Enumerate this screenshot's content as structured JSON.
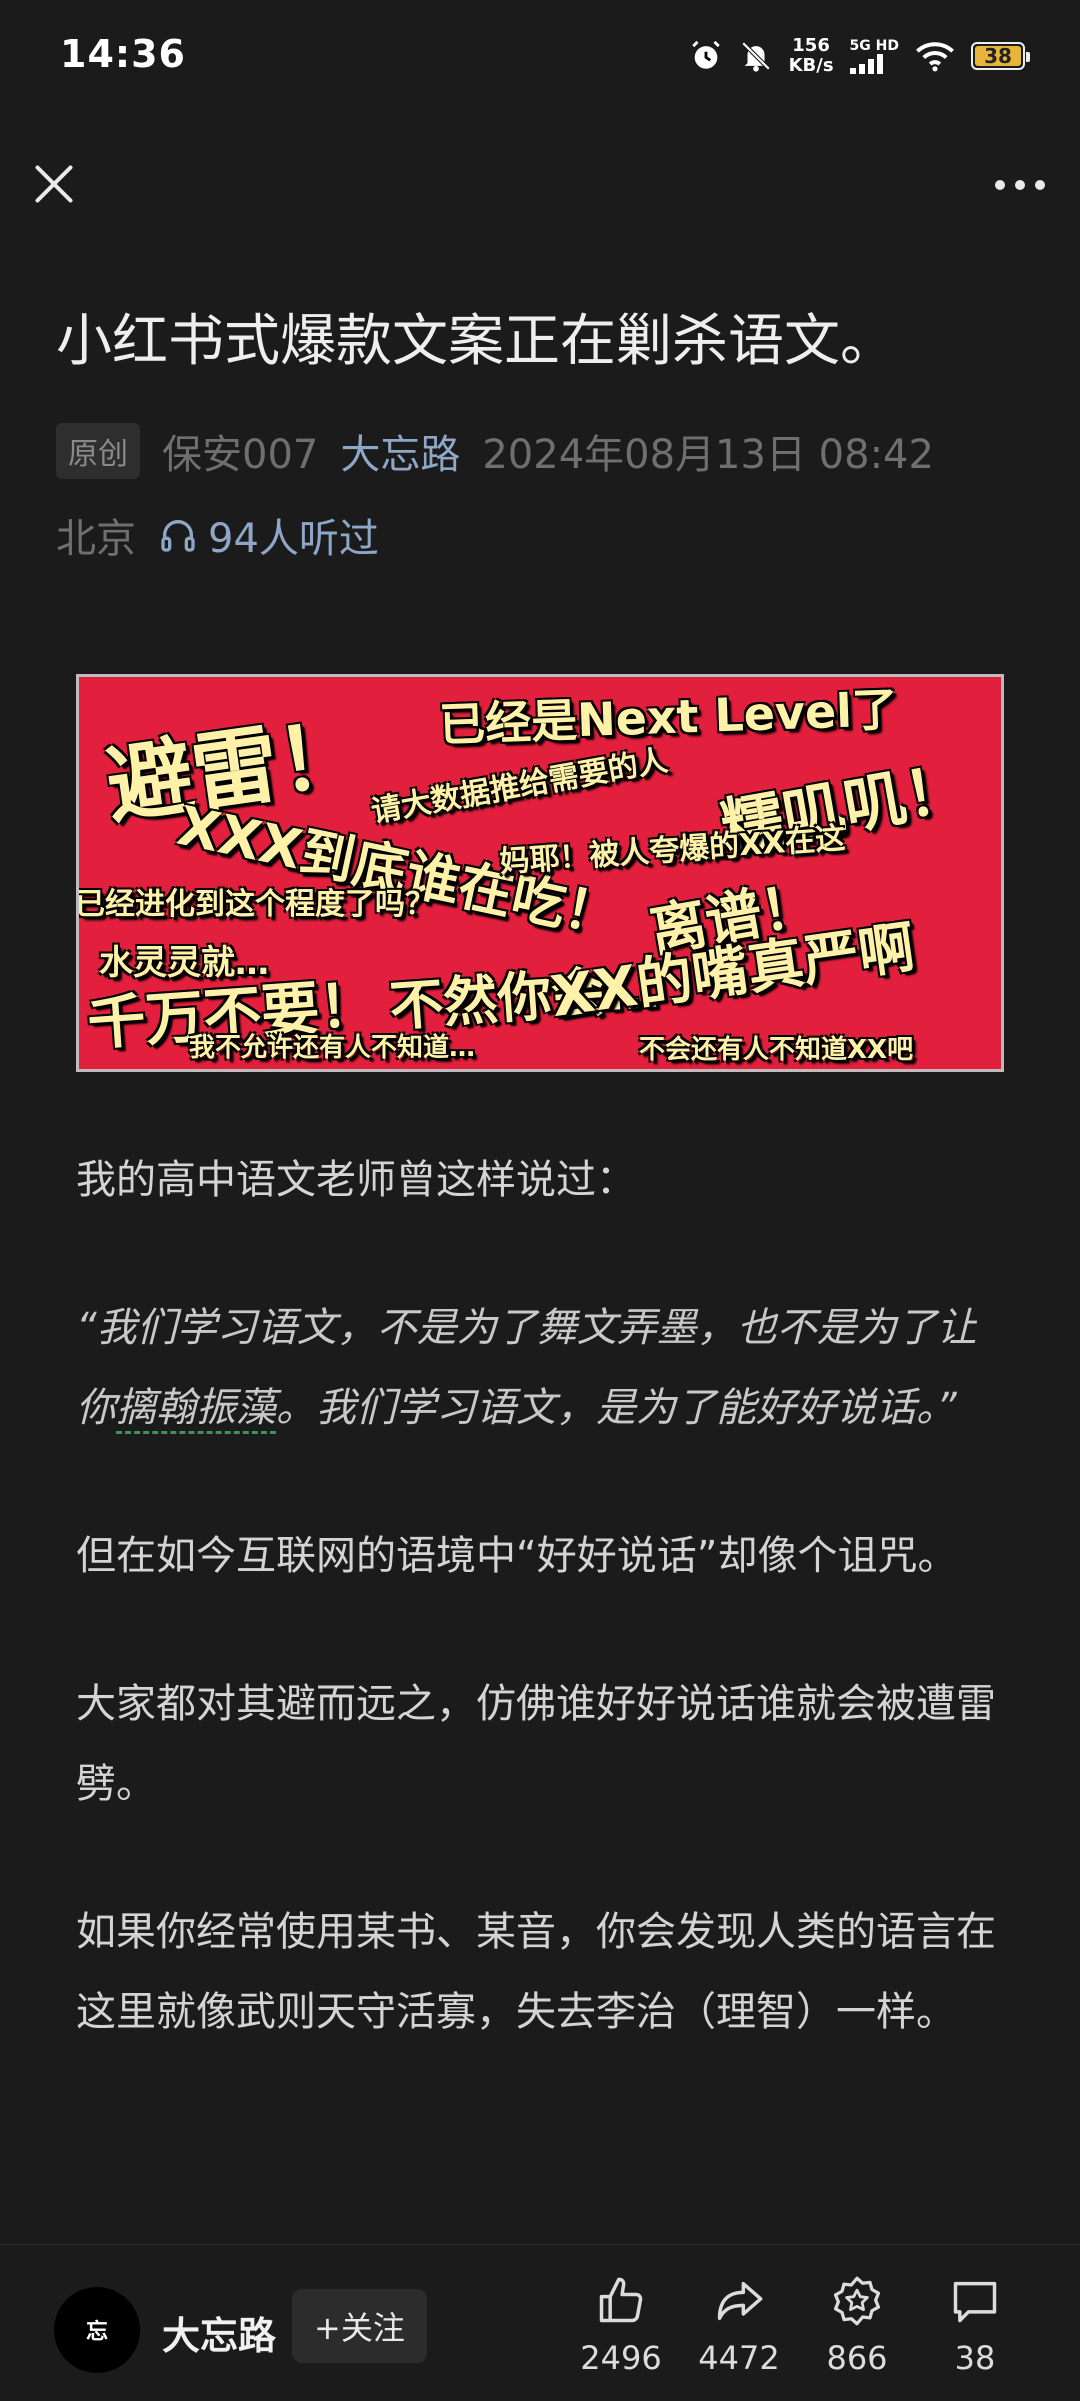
{
  "status": {
    "time": "14:36",
    "speed_value": "156",
    "speed_unit": "KB/s",
    "network": "5G HD",
    "battery": "38"
  },
  "nav": {
    "close_icon": "close-icon",
    "more_icon": "more-dots-icon"
  },
  "article": {
    "title": "小红书式爆款文案正在剿杀语文。",
    "badge": "原创",
    "author": "保安007",
    "source": "大忘路",
    "datetime": "2024年08月13日 08:42",
    "location": "北京",
    "listen_count": "94人听过"
  },
  "banner": {
    "t1": "避雷！",
    "t2": "已经是Next Level了",
    "t3": "请大数据推给需要的人",
    "t4": "糯叽叽！",
    "t5": "XXX到底谁在吃！",
    "t6": "妈耶！被人夸爆的XX在这",
    "t7": "已经进化到这个程度了吗？",
    "t8": "离谱！",
    "t9": "水灵灵就…",
    "t10": "千万不要！",
    "t11": "不然你会…",
    "t12": "XX的嘴真严啊",
    "t13": "我不允许还有人不知道…",
    "t14": "不会还有人不知道XX吧"
  },
  "body": {
    "p1": "我的高中语文老师曾这样说过：",
    "p2_a": "“我们学习语文，不是为了舞文弄墨，也不是为了让你",
    "p2_link": "摛翰振藻",
    "p2_b": "。我们学习语文，是为了能好好说话。”",
    "p3": "但在如今互联网的语境中“好好说话”却像个诅咒。",
    "p4": "大家都对其避而远之，仿佛谁好好说话谁就会被遭雷劈。",
    "p5": "如果你经常使用某书、某音，你会发现人类的语言在这里就像武则天守活寡，失去李治（理智）一样。"
  },
  "bottombar": {
    "avatar_text": "忘",
    "author": "大忘路",
    "follow": "+关注",
    "likes": "2496",
    "shares": "4472",
    "favorites": "866",
    "comments": "38"
  }
}
